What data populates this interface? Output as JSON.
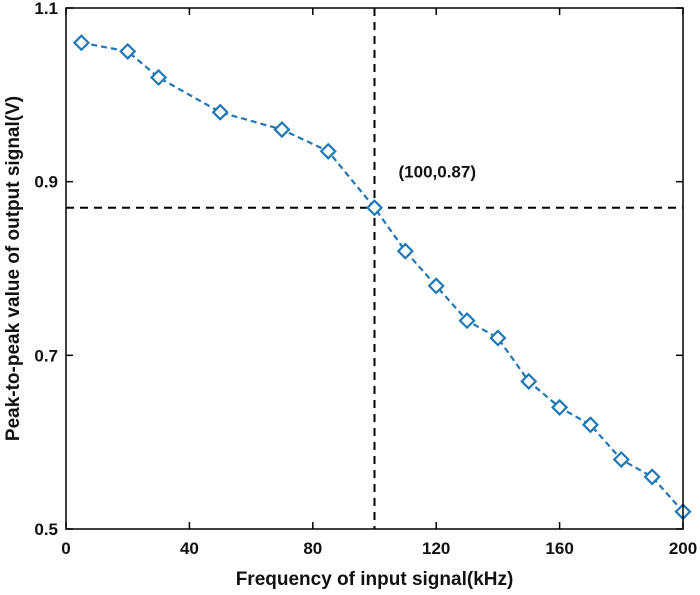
{
  "chart_data": {
    "type": "line",
    "title": "",
    "xlabel": "Frequency of input signal(kHz)",
    "ylabel": "Peak-to-peak value of output signal(V)",
    "xlim": [
      0,
      200
    ],
    "ylim": [
      0.5,
      1.1
    ],
    "xticks": [
      0,
      40,
      80,
      120,
      160,
      200
    ],
    "yticks": [
      0.5,
      0.7,
      0.9,
      1.1
    ],
    "ytick_labels": [
      "0.5",
      "0.7",
      "0.9",
      "1.1"
    ],
    "grid": false,
    "series": [
      {
        "color": "#1f77b4",
        "line_style": "dashed",
        "marker": "diamond-open",
        "x": [
          5,
          20,
          30,
          50,
          70,
          85,
          100,
          110,
          120,
          130,
          140,
          150,
          160,
          170,
          180,
          190,
          200
        ],
        "y": [
          1.06,
          1.05,
          1.02,
          0.98,
          0.96,
          0.935,
          0.87,
          0.82,
          0.78,
          0.74,
          0.72,
          0.67,
          0.64,
          0.62,
          0.58,
          0.56,
          0.52
        ]
      }
    ],
    "reference_lines": [
      {
        "orientation": "vertical",
        "value": 100,
        "style": "dashed",
        "color": "#000000"
      },
      {
        "orientation": "horizontal",
        "value": 0.87,
        "style": "dashed",
        "color": "#000000"
      }
    ],
    "annotations": [
      {
        "text": "(100,0.87)",
        "x": 100,
        "y": 0.87
      }
    ]
  }
}
